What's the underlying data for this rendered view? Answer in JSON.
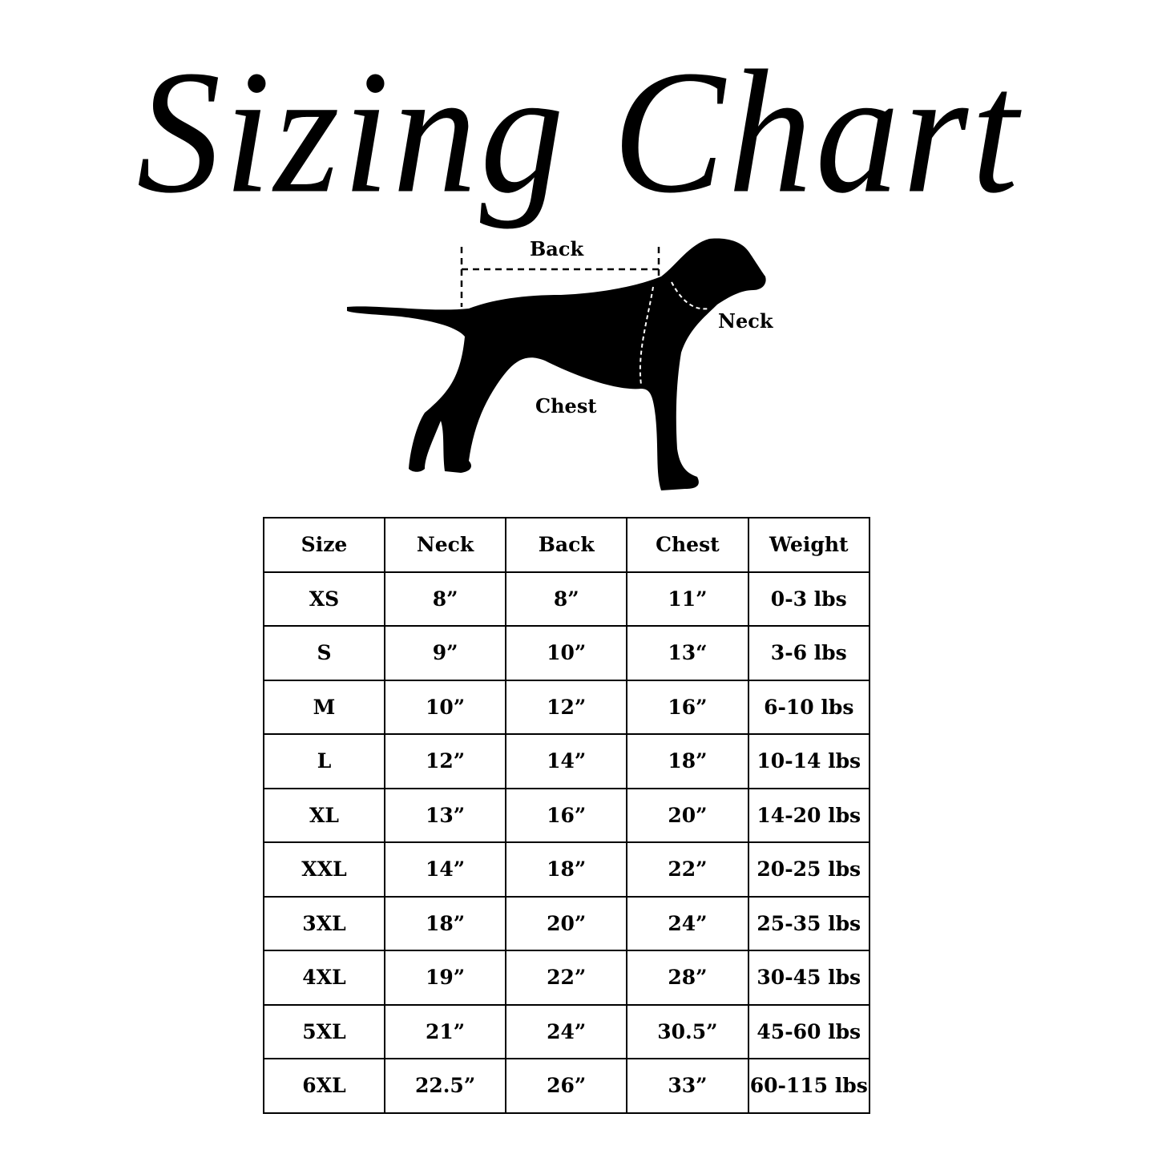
{
  "title": "Sizing Chart",
  "diagram_labels": {
    "back": "Back",
    "neck": "Neck",
    "chest": "Chest"
  },
  "table": {
    "headers": [
      "Size",
      "Neck",
      "Back",
      "Chest",
      "Weight"
    ],
    "rows": [
      [
        "XS",
        "8”",
        "8”",
        "11”",
        "0-3 lbs"
      ],
      [
        "S",
        "9”",
        "10”",
        "13“",
        "3-6 lbs"
      ],
      [
        "M",
        "10”",
        "12”",
        "16”",
        "6-10 lbs"
      ],
      [
        "L",
        "12”",
        "14”",
        "18”",
        "10-14 lbs"
      ],
      [
        "XL",
        "13”",
        "16”",
        "20”",
        "14-20 lbs"
      ],
      [
        "XXL",
        "14”",
        "18”",
        "22”",
        "20-25 lbs"
      ],
      [
        "3XL",
        "18”",
        "20”",
        "24”",
        "25-35 lbs"
      ],
      [
        "4XL",
        "19”",
        "22”",
        "28”",
        "30-45 lbs"
      ],
      [
        "5XL",
        "21”",
        "24”",
        "30.5”",
        "45-60 lbs"
      ],
      [
        "6XL",
        "22.5”",
        "26”",
        "33”",
        "60-115 lbs"
      ]
    ]
  }
}
